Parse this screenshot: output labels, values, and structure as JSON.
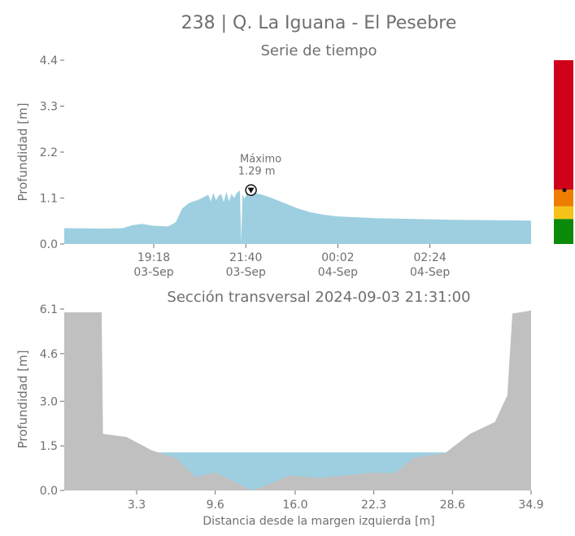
{
  "title": "238 | Q. La Iguana - El Pesebre",
  "chart_data": [
    {
      "type": "area",
      "title": "Serie de tiempo",
      "ylabel": "Profundidad [m]",
      "xlabel": "",
      "ylim": [
        0,
        4.4
      ],
      "yticks": [
        "0.0",
        "1.1",
        "2.2",
        "3.3",
        "4.4"
      ],
      "xrange": [
        "2024-09-03 17:00",
        "2024-09-04 05:00"
      ],
      "xticks": [
        {
          "t": "2024-09-03 19:18",
          "label1": "19:18",
          "label2": "03-Sep"
        },
        {
          "t": "2024-09-03 21:40",
          "label1": "21:40",
          "label2": "03-Sep"
        },
        {
          "t": "2024-09-04 00:02",
          "label1": "00:02",
          "label2": "04-Sep"
        },
        {
          "t": "2024-09-04 02:24",
          "label1": "02:24",
          "label2": "04-Sep"
        }
      ],
      "series": [
        {
          "color": "#9ecfe0",
          "points": [
            [
              "2024-09-03 17:00",
              0.38
            ],
            [
              "2024-09-03 18:00",
              0.37
            ],
            [
              "2024-09-03 18:30",
              0.38
            ],
            [
              "2024-09-03 18:45",
              0.45
            ],
            [
              "2024-09-03 19:00",
              0.48
            ],
            [
              "2024-09-03 19:15",
              0.44
            ],
            [
              "2024-09-03 19:40",
              0.42
            ],
            [
              "2024-09-03 19:52",
              0.52
            ],
            [
              "2024-09-03 20:02",
              0.85
            ],
            [
              "2024-09-03 20:12",
              0.98
            ],
            [
              "2024-09-03 20:30",
              1.08
            ],
            [
              "2024-09-03 20:42",
              1.18
            ],
            [
              "2024-09-03 20:46",
              1.02
            ],
            [
              "2024-09-03 20:50",
              1.22
            ],
            [
              "2024-09-03 20:54",
              1.05
            ],
            [
              "2024-09-03 20:58",
              1.15
            ],
            [
              "2024-09-03 21:02",
              1.2
            ],
            [
              "2024-09-03 21:06",
              1.0
            ],
            [
              "2024-09-03 21:10",
              1.25
            ],
            [
              "2024-09-03 21:14",
              1.02
            ],
            [
              "2024-09-03 21:18",
              1.2
            ],
            [
              "2024-09-03 21:22",
              1.1
            ],
            [
              "2024-09-03 21:26",
              1.22
            ],
            [
              "2024-09-03 21:31",
              1.28
            ],
            [
              "2024-09-03 21:33",
              0.05
            ],
            [
              "2024-09-03 21:35",
              1.2
            ],
            [
              "2024-09-03 21:38",
              1.08
            ],
            [
              "2024-09-03 21:42",
              1.22
            ],
            [
              "2024-09-03 21:45",
              1.12
            ],
            [
              "2024-09-03 21:48",
              1.27
            ],
            [
              "2024-09-03 21:53",
              1.22
            ],
            [
              "2024-09-03 22:05",
              1.18
            ],
            [
              "2024-09-03 22:20",
              1.1
            ],
            [
              "2024-09-03 22:40",
              0.98
            ],
            [
              "2024-09-03 23:00",
              0.85
            ],
            [
              "2024-09-03 23:20",
              0.76
            ],
            [
              "2024-09-03 23:40",
              0.7
            ],
            [
              "2024-09-04 00:02",
              0.66
            ],
            [
              "2024-09-04 00:30",
              0.64
            ],
            [
              "2024-09-04 01:00",
              0.62
            ],
            [
              "2024-09-04 02:00",
              0.6
            ],
            [
              "2024-09-04 03:00",
              0.58
            ],
            [
              "2024-09-04 04:00",
              0.57
            ],
            [
              "2024-09-04 05:00",
              0.56
            ]
          ]
        }
      ],
      "annotations": [
        {
          "t": "2024-09-03 21:48",
          "y": 1.29,
          "line1": "Máximo",
          "line2": "1.29 m"
        }
      ]
    },
    {
      "type": "bar",
      "orientation": "vertical-stacked",
      "segments": [
        {
          "from": 0.0,
          "to": 0.6,
          "color": "#0b8a0b"
        },
        {
          "from": 0.6,
          "to": 0.9,
          "color": "#f5c318"
        },
        {
          "from": 0.9,
          "to": 1.3,
          "color": "#ee7d00"
        },
        {
          "from": 1.3,
          "to": 4.4,
          "color": "#d0021b"
        }
      ],
      "marker": 1.29
    },
    {
      "type": "area",
      "title": "Sección transversal 2024-09-03 21:31:00",
      "ylabel": "Profundidad [m]",
      "xlabel": "Distancia desde la margen izquierda [m]",
      "xlim": [
        -2.5,
        34.9
      ],
      "ylim": [
        0,
        6.1
      ],
      "xticks": [
        "3.3",
        "9.6",
        "16.0",
        "22.3",
        "28.6",
        "34.9"
      ],
      "yticks": [
        "0.0",
        "1.5",
        "3.0",
        "4.6",
        "6.1"
      ],
      "water_level": 1.28,
      "water_color": "#9ecfe0",
      "terrain_color": "#c0c0c0",
      "terrain": [
        [
          -2.5,
          6.1
        ],
        [
          -2.5,
          5.99
        ],
        [
          0.5,
          5.99
        ],
        [
          0.6,
          1.9
        ],
        [
          2.5,
          1.8
        ],
        [
          4.5,
          1.35
        ],
        [
          6.5,
          1.08
        ],
        [
          8.0,
          0.45
        ],
        [
          9.6,
          0.6
        ],
        [
          11.5,
          0.22
        ],
        [
          12.5,
          0.0
        ],
        [
          13.3,
          0.1
        ],
        [
          15.5,
          0.5
        ],
        [
          18.0,
          0.42
        ],
        [
          22.3,
          0.6
        ],
        [
          24.0,
          0.58
        ],
        [
          25.5,
          1.1
        ],
        [
          28.0,
          1.25
        ],
        [
          30.0,
          1.9
        ],
        [
          32.0,
          2.3
        ],
        [
          33.0,
          3.2
        ],
        [
          33.4,
          5.95
        ],
        [
          34.9,
          6.05
        ],
        [
          34.9,
          6.1
        ]
      ]
    }
  ]
}
